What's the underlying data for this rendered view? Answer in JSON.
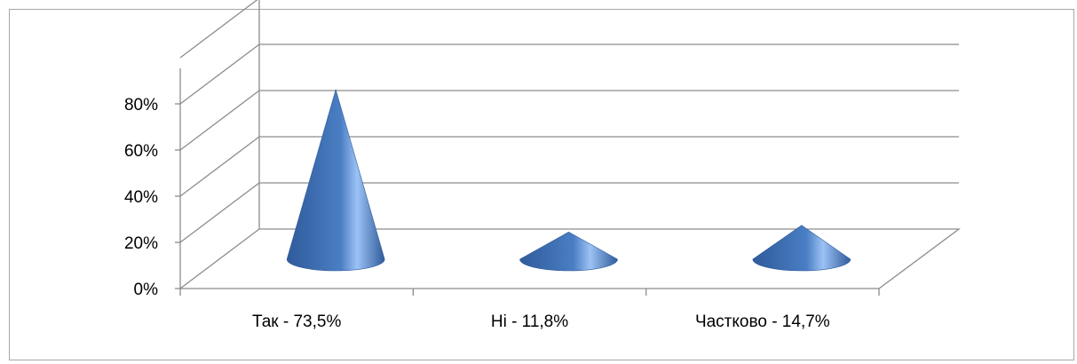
{
  "chart_data": {
    "type": "bar",
    "style": "3d-cone",
    "categories": [
      "Так - 73,5%",
      "Ні - 11,8%",
      "Частково - 14,7%"
    ],
    "values": [
      73.5,
      11.8,
      14.7
    ],
    "ylim": [
      0,
      80
    ],
    "yticks": [
      "0%",
      "20%",
      "40%",
      "60%",
      "80%"
    ],
    "ytick_values": [
      0,
      20,
      40,
      60,
      80
    ],
    "grid": true,
    "legend": "none",
    "title": "",
    "xlabel": "",
    "ylabel": "",
    "colors": {
      "cone_dark": "#2f5b9a",
      "cone_mid": "#4a7ec4",
      "cone_light": "#9cc2f5",
      "grid": "#8c8c8c"
    }
  }
}
